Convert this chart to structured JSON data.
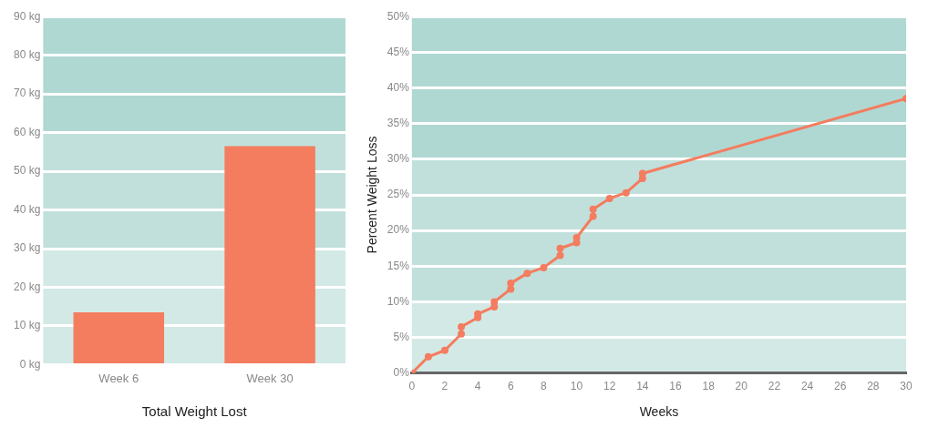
{
  "chart_data": [
    {
      "type": "bar",
      "xlabel": "Total Weight Lost",
      "categories": [
        "Week 6",
        "Week 30"
      ],
      "values": [
        13.5,
        56.5
      ],
      "color": "#f47c5f",
      "ylim": [
        0,
        90
      ],
      "yticks": [
        {
          "value": 0,
          "label": "0 kg"
        },
        {
          "value": 10,
          "label": "10 kg"
        },
        {
          "value": 20,
          "label": "20 kg"
        },
        {
          "value": 30,
          "label": "30 kg"
        },
        {
          "value": 40,
          "label": "40 kg"
        },
        {
          "value": 50,
          "label": "50 kg"
        },
        {
          "value": 60,
          "label": "60 kg"
        },
        {
          "value": 70,
          "label": "70 kg"
        },
        {
          "value": 80,
          "label": "80 kg"
        },
        {
          "value": 90,
          "label": "90 kg"
        }
      ],
      "bands": [
        {
          "axis": "y",
          "from": 0,
          "to": 30,
          "color": "#d3e9e5"
        },
        {
          "axis": "y",
          "from": 30,
          "to": 60,
          "color": "#c1e0db"
        },
        {
          "axis": "y",
          "from": 60,
          "to": 90,
          "color": "#b0d8d2"
        }
      ],
      "grid": "y",
      "legend": false
    },
    {
      "type": "line",
      "xlabel": "Weeks",
      "ylabel": "Percent Weight Loss",
      "color": "#f47c5f",
      "marker": "circle",
      "line_style": "solid",
      "x": [
        0,
        1,
        2,
        3,
        3,
        4,
        4,
        5,
        5,
        6,
        6,
        7,
        8,
        9,
        9,
        10,
        10,
        11,
        11,
        12,
        13,
        14,
        14,
        30
      ],
      "values": [
        0,
        2.3,
        3.2,
        5.5,
        6.5,
        7.8,
        8.3,
        9.3,
        10,
        11.8,
        12.6,
        14,
        14.8,
        16.5,
        17.5,
        18.3,
        19,
        22,
        23,
        24.5,
        25.3,
        27.3,
        28,
        38.5
      ],
      "xlim": [
        0,
        30
      ],
      "xticks": [
        0,
        2,
        4,
        6,
        8,
        10,
        12,
        14,
        16,
        18,
        20,
        22,
        24,
        26,
        28,
        30
      ],
      "ylim": [
        0,
        50
      ],
      "yticks": [
        {
          "value": 0,
          "label": "0%"
        },
        {
          "value": 5,
          "label": "5%"
        },
        {
          "value": 10,
          "label": "10%"
        },
        {
          "value": 15,
          "label": "15%"
        },
        {
          "value": 20,
          "label": "20%"
        },
        {
          "value": 25,
          "label": "25%"
        },
        {
          "value": 30,
          "label": "30%"
        },
        {
          "value": 35,
          "label": "35%"
        },
        {
          "value": 40,
          "label": "40%"
        },
        {
          "value": 45,
          "label": "45%"
        },
        {
          "value": 50,
          "label": "50%"
        }
      ],
      "bands": [
        {
          "axis": "y",
          "from": 0,
          "to": 10,
          "color": "#d3e9e5"
        },
        {
          "axis": "y",
          "from": 10,
          "to": 30,
          "color": "#c1e0db"
        },
        {
          "axis": "y",
          "from": 30,
          "to": 50,
          "color": "#b0d8d2"
        }
      ],
      "grid": "y",
      "legend": false
    }
  ]
}
